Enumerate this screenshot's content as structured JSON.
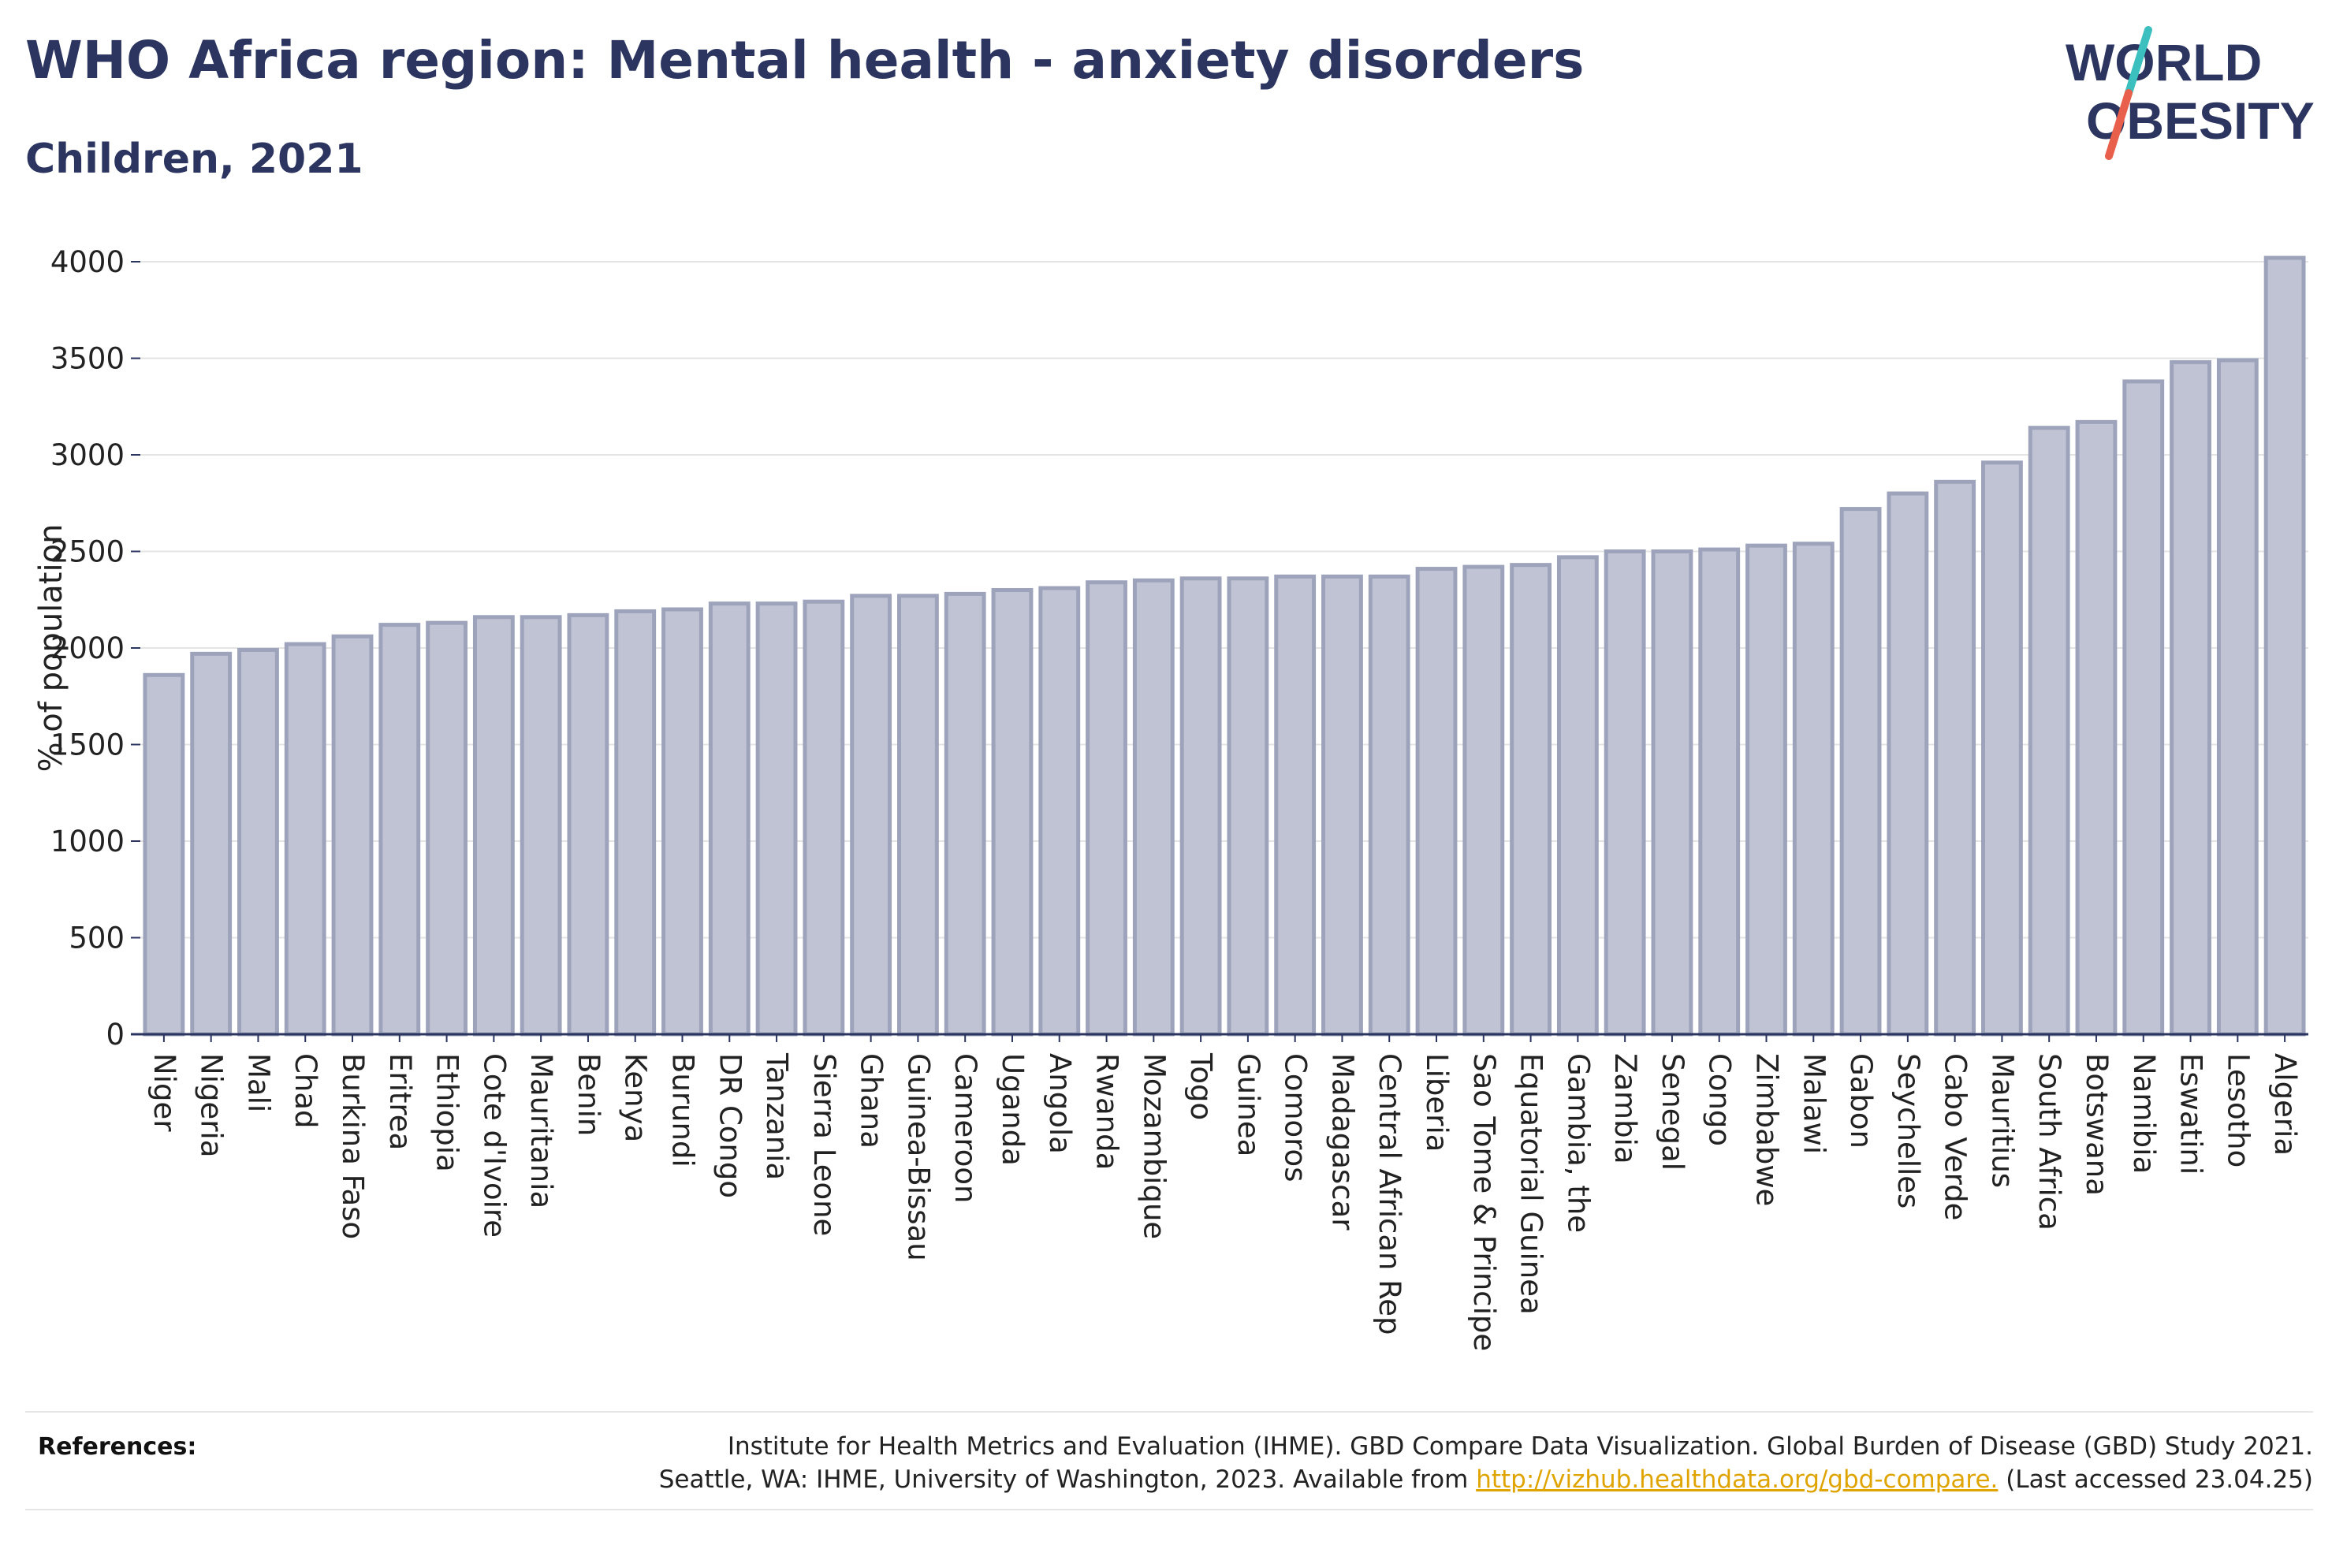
{
  "header": {
    "title": "WHO Africa region: Mental health - anxiety disorders",
    "subtitle": "Children, 2021"
  },
  "logo": {
    "line1": "WORLD",
    "line2": "OBESITY",
    "text_color": "#2b3560",
    "slash_colors": [
      "#3bbfbf",
      "#e8604c"
    ]
  },
  "references": {
    "label": "References:",
    "line1": "Institute for Health Metrics and Evaluation (IHME). GBD Compare Data Visualization. Global Burden of Disease (GBD) Study 2021.",
    "line2_before": "Seattle, WA: IHME, University of Washington, 2023. Available from ",
    "link": "http://vizhub.healthdata.org/gbd-compare.",
    "line2_after": " (Last accessed 23.04.25)"
  },
  "chart_data": {
    "type": "bar",
    "ylabel": "% of population",
    "ylim": [
      0,
      4000
    ],
    "yticks": [
      0,
      500,
      1000,
      1500,
      2000,
      2500,
      3000,
      3500,
      4000
    ],
    "grid": true,
    "bar_fill": "#c0c3d3",
    "bar_stroke": "#9ea3bc",
    "categories": [
      "Niger",
      "Nigeria",
      "Mali",
      "Chad",
      "Burkina Faso",
      "Eritrea",
      "Ethiopia",
      "Cote d'Ivoire",
      "Mauritania",
      "Benin",
      "Kenya",
      "Burundi",
      "DR Congo",
      "Tanzania",
      "Sierra Leone",
      "Ghana",
      "Guinea-Bissau",
      "Cameroon",
      "Uganda",
      "Angola",
      "Rwanda",
      "Mozambique",
      "Togo",
      "Guinea",
      "Comoros",
      "Madagascar",
      "Central African Rep",
      "Liberia",
      "Sao Tome & Principe",
      "Equatorial Guinea",
      "Gambia, the",
      "Zambia",
      "Senegal",
      "Congo",
      "Zimbabwe",
      "Malawi",
      "Gabon",
      "Seychelles",
      "Cabo Verde",
      "Mauritius",
      "South Africa",
      "Botswana",
      "Namibia",
      "Eswatini",
      "Lesotho",
      "Algeria"
    ],
    "values": [
      1860,
      1970,
      1990,
      2020,
      2060,
      2120,
      2130,
      2160,
      2160,
      2170,
      2190,
      2200,
      2230,
      2230,
      2240,
      2270,
      2270,
      2280,
      2300,
      2310,
      2340,
      2350,
      2360,
      2360,
      2370,
      2370,
      2370,
      2410,
      2420,
      2430,
      2470,
      2500,
      2500,
      2510,
      2530,
      2540,
      2720,
      2800,
      2860,
      2960,
      3140,
      3170,
      3380,
      3480,
      3490,
      4020
    ]
  }
}
